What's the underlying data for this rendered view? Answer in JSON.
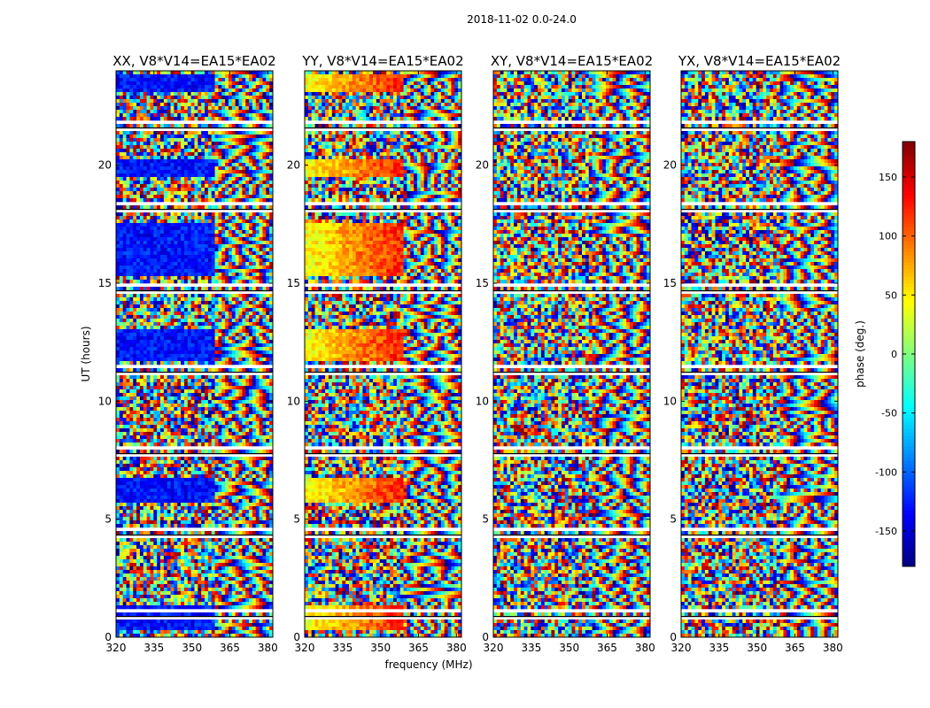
{
  "figure": {
    "title": "2018-11-02 0.0-24.0"
  },
  "chart_data": {
    "type": "heatmap",
    "xlabel": "frequency (MHz)",
    "ylabel": "UT (hours)",
    "xlim": [
      320,
      382
    ],
    "ylim": [
      0,
      24
    ],
    "xticks": [
      320,
      335,
      350,
      365,
      380
    ],
    "yticks": [
      0,
      5,
      10,
      15,
      20
    ],
    "panels": [
      {
        "title": "XX, V8*V14=EA15*EA02",
        "base_phase": -130
      },
      {
        "title": "YY, V8*V14=EA15*EA02",
        "base_phase": 40
      },
      {
        "title": "XY, V8*V14=EA15*EA02",
        "base_phase": null
      },
      {
        "title": "YX, V8*V14=EA15*EA02",
        "base_phase": null
      }
    ],
    "colorbar": {
      "label": "phase (deg.)",
      "vmin": -180,
      "vmax": 180,
      "ticks": [
        -150,
        -100,
        -50,
        0,
        50,
        100,
        150
      ],
      "colormap": "jet"
    }
  }
}
